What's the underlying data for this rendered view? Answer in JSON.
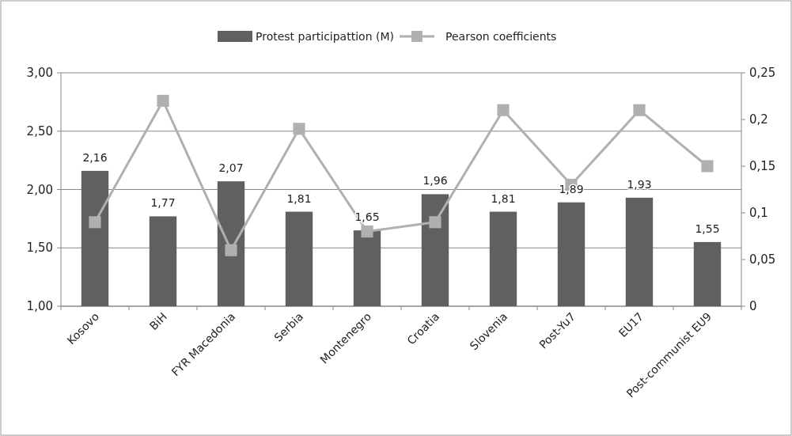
{
  "chart_data": {
    "type": "bar",
    "categories": [
      "Kosovo",
      "BiH",
      "FYR Macedonia",
      "Serbia",
      "Montenegro",
      "Croatia",
      "Slovenia",
      "Post-Yu7",
      "EU17",
      "Post-communist EU9"
    ],
    "series": [
      {
        "name": "Protest participattion (M)",
        "color": "#606060",
        "values": [
          2.16,
          1.77,
          2.07,
          1.81,
          1.65,
          1.96,
          1.81,
          1.89,
          1.93,
          1.55
        ],
        "value_labels": [
          "2,16",
          "1,77",
          "2,07",
          "1,81",
          "1,65",
          "1,96",
          "1,81",
          "1,89",
          "1,93",
          "1,55"
        ]
      },
      {
        "name": "Pearson coefficients",
        "type": "line",
        "axis": "y2",
        "color": "#b0b0b0",
        "values": [
          0.09,
          0.22,
          0.06,
          0.19,
          0.08,
          0.09,
          0.21,
          0.13,
          0.21,
          0.15
        ]
      }
    ],
    "ylim": [
      1,
      3
    ],
    "yticks": [
      {
        "value": 1,
        "label": "1,00"
      },
      {
        "value": 1.5,
        "label": "1,50"
      },
      {
        "value": 2,
        "label": "2,00"
      },
      {
        "value": 2.5,
        "label": "2,50"
      },
      {
        "value": 3,
        "label": "3,00"
      }
    ],
    "y2lim": [
      0,
      0.25
    ],
    "y2ticks": [
      0,
      {
        "value": 0.05,
        "label": "0,05"
      },
      {
        "value": 0.1,
        "label": "0,1"
      },
      {
        "value": 0.15,
        "label": "0,15"
      },
      {
        "value": 0.2,
        "label": "0,2"
      },
      {
        "value": 0.25,
        "label": "0,25"
      }
    ],
    "grid": "y",
    "legend": "top",
    "marker": "square"
  }
}
